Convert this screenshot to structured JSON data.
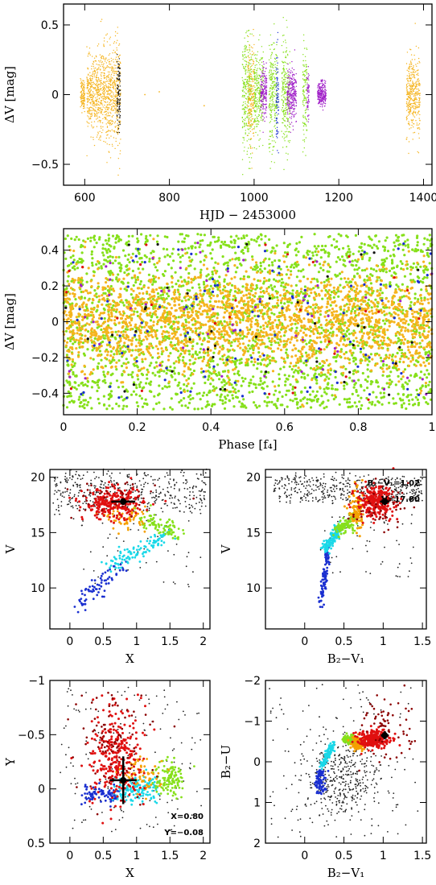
{
  "chart_data": [
    {
      "id": "lc",
      "type": "scatter",
      "xlabel": "HJD − 2453000",
      "ylabel": "ΔV [mag]",
      "xlim": [
        550,
        1420
      ],
      "ylim": [
        0.65,
        -0.65
      ],
      "xticks": [
        600,
        800,
        1000,
        1200,
        1400
      ],
      "yticks": [
        -0.5,
        0,
        0.5
      ],
      "ytick_labels": [
        "−0.5",
        "0",
        "0.5"
      ],
      "season_blocks": [
        {
          "x_from": 590,
          "x_to": 600,
          "color": "#f5b41e",
          "half_amp": 0.12
        },
        {
          "x_from": 605,
          "x_to": 635,
          "color": "#f5b41e",
          "half_amp": 0.28
        },
        {
          "x_from": 635,
          "x_to": 665,
          "color": "#f5b41e",
          "half_amp": 0.38
        },
        {
          "x_from": 665,
          "x_to": 685,
          "color": "#f5b41e",
          "half_amp": 0.45
        },
        {
          "x_from": 676,
          "x_to": 684,
          "color": "#111111",
          "half_amp": 0.3
        },
        {
          "x_from": 972,
          "x_to": 995,
          "color": "#86e01a",
          "half_amp": 0.45
        },
        {
          "x_from": 985,
          "x_to": 1000,
          "color": "#f5b41e",
          "half_amp": 0.4
        },
        {
          "x_from": 1000,
          "x_to": 1022,
          "color": "#86e01a",
          "half_amp": 0.35
        },
        {
          "x_from": 1015,
          "x_to": 1030,
          "color": "#a020c8",
          "half_amp": 0.2
        },
        {
          "x_from": 1035,
          "x_to": 1055,
          "color": "#86e01a",
          "half_amp": 0.45
        },
        {
          "x_from": 1052,
          "x_to": 1058,
          "color": "#1a2fd0",
          "half_amp": 0.35
        },
        {
          "x_from": 1065,
          "x_to": 1085,
          "color": "#86e01a",
          "half_amp": 0.45
        },
        {
          "x_from": 1078,
          "x_to": 1090,
          "color": "#a020c8",
          "half_amp": 0.2
        },
        {
          "x_from": 1090,
          "x_to": 1100,
          "color": "#a020c8",
          "half_amp": 0.2
        },
        {
          "x_from": 1115,
          "x_to": 1125,
          "color": "#86e01a",
          "half_amp": 0.42
        },
        {
          "x_from": 1125,
          "x_to": 1130,
          "color": "#a020c8",
          "half_amp": 0.18
        },
        {
          "x_from": 1150,
          "x_to": 1170,
          "color": "#a020c8",
          "half_amp": 0.1
        },
        {
          "x_from": 1360,
          "x_to": 1392,
          "color": "#f5b41e",
          "half_amp": 0.3
        }
      ],
      "isolated_points": [
        [
          742,
          0
        ],
        [
          776,
          0.02
        ],
        [
          882,
          -0.08
        ],
        [
          1360,
          -0.32
        ]
      ]
    },
    {
      "id": "phase",
      "type": "scatter",
      "xlabel": "Phase [f₄]",
      "ylabel": "ΔV [mag]",
      "xlim": [
        0,
        1
      ],
      "ylim": [
        0.52,
        -0.52
      ],
      "xticks": [
        0,
        0.2,
        0.4,
        0.6,
        0.8,
        1
      ],
      "xtick_labels": [
        "0",
        "0.2",
        "0.4",
        "0.6",
        "0.8",
        "1"
      ],
      "yticks": [
        -0.4,
        -0.2,
        0,
        0.2,
        0.4
      ],
      "ytick_labels": [
        "−0.4",
        "−0.2",
        "0",
        "0.2",
        "0.4"
      ],
      "series": [
        {
          "color": "#86e01a",
          "count": 2600,
          "spread": 0.5
        },
        {
          "color": "#f5b41e",
          "count": 2200,
          "spread": 0.3
        },
        {
          "color": "#1a2fd0",
          "count": 110,
          "spread": 0.45
        },
        {
          "color": "#a020c8",
          "count": 60,
          "spread": 0.45
        },
        {
          "color": "#111111",
          "count": 40,
          "spread": 0.45
        },
        {
          "color": "#e01010",
          "count": 30,
          "spread": 0.45
        }
      ]
    },
    {
      "id": "cmd_x",
      "type": "scatter",
      "xlabel": "X",
      "ylabel": "V",
      "xlim": [
        -0.3,
        2.1
      ],
      "ylim": [
        20.7,
        6.3
      ],
      "xticks": [
        0,
        0.5,
        1,
        1.5,
        2
      ],
      "xtick_labels": [
        "0",
        "0.5",
        "1",
        "1.5",
        "2"
      ],
      "yticks": [
        10,
        15,
        20
      ],
      "yticks_minor": true,
      "marker": {
        "x": 0.8,
        "y": 17.8,
        "xerr": 0.18,
        "yerr": 0.3
      }
    },
    {
      "id": "cmd_b",
      "type": "scatter",
      "xlabel": "B₂−V₁",
      "ylabel": "V",
      "xlim": [
        -0.5,
        1.55
      ],
      "ylim": [
        20.7,
        6.3
      ],
      "xticks": [
        0,
        0.5,
        1,
        1.5
      ],
      "xtick_labels": [
        "0",
        "0.5",
        "1",
        "1.5"
      ],
      "yticks": [
        10,
        15,
        20
      ],
      "marker": {
        "x": 1.02,
        "y": 17.8,
        "xerr": 0.06,
        "yerr": 0.3
      },
      "annotations": [
        "B₂−V₁=1.02",
        "V=17.80"
      ]
    },
    {
      "id": "cc_xy",
      "type": "scatter",
      "xlabel": "X",
      "ylabel": "Y",
      "xlim": [
        -0.3,
        2.1
      ],
      "ylim": [
        -1,
        0.5
      ],
      "xticks": [
        0,
        0.5,
        1,
        1.5,
        2
      ],
      "xtick_labels": [
        "0",
        "0.5",
        "1",
        "1.5",
        "2"
      ],
      "yticks": [
        0.5,
        0,
        -0.5,
        -1
      ],
      "ytick_labels": [
        "0.5",
        "0",
        "−0.5",
        "−1"
      ],
      "marker": {
        "x": 0.8,
        "y": -0.08,
        "xerr": 0.2,
        "yerr": 0.22
      },
      "annotations": [
        "X=0.80",
        "Y=−0.08"
      ]
    },
    {
      "id": "cc_bu",
      "type": "scatter",
      "xlabel": "B₂−V₁",
      "ylabel": "B₂−U",
      "xlim": [
        -0.5,
        1.55
      ],
      "ylim": [
        -2,
        2
      ],
      "xticks": [
        0,
        0.5,
        1,
        1.5
      ],
      "xtick_labels": [
        "0",
        "0.5",
        "1",
        "1.5"
      ],
      "yticks": [
        2,
        1,
        0,
        -1,
        -2
      ],
      "ytick_labels": [
        "2",
        "1",
        "0",
        "−1",
        "−2"
      ],
      "marker": {
        "x": 1.02,
        "y": -0.65,
        "xerr": 0.05,
        "yerr": 0.1
      }
    }
  ],
  "sequence_colors": [
    "#1a2fd0",
    "#1ad8e8",
    "#86e01a",
    "#f5a000",
    "#e01010",
    "#8b0000"
  ]
}
